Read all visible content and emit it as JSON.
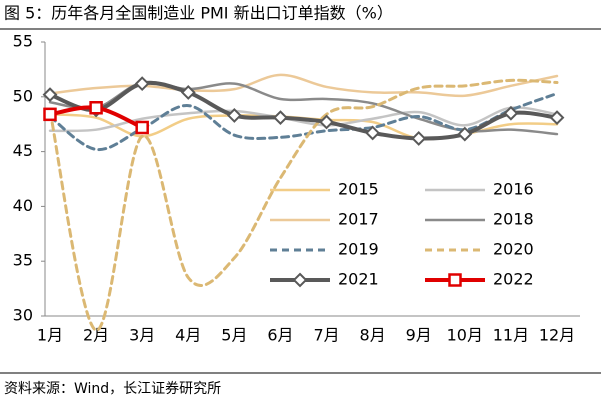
{
  "chart_data": {
    "type": "line",
    "title": "图 5：历年各月全国制造业 PMI 新出口订单指数（%）",
    "source": "资料来源：Wind，长江证券研究所",
    "categories": [
      "1月",
      "2月",
      "3月",
      "4月",
      "5月",
      "6月",
      "7月",
      "8月",
      "9月",
      "10月",
      "11月",
      "12月"
    ],
    "ylim": [
      30,
      55
    ],
    "yticks": [
      30,
      35,
      40,
      45,
      50,
      55
    ],
    "series": [
      {
        "name": "2015",
        "color": "#f2cd87",
        "line_width": 2.5,
        "dash": false,
        "marker": "none",
        "values": [
          48.4,
          48.1,
          46.4,
          48.0,
          48.3,
          48.2,
          47.9,
          47.7,
          46.2,
          46.6,
          47.5,
          47.5
        ]
      },
      {
        "name": "2016",
        "color": "#c4c4c4",
        "line_width": 2.5,
        "dash": false,
        "marker": "none",
        "values": [
          46.9,
          47.0,
          48.0,
          48.5,
          48.7,
          48.1,
          47.4,
          48.0,
          48.6,
          47.4,
          49.0,
          48.4
        ]
      },
      {
        "name": "2017",
        "color": "#ecc998",
        "line_width": 2.5,
        "dash": false,
        "marker": "none",
        "values": [
          50.3,
          50.8,
          51.0,
          50.6,
          50.7,
          52.0,
          50.9,
          50.4,
          50.4,
          50.1,
          51.0,
          51.9
        ]
      },
      {
        "name": "2018",
        "color": "#8a8a8a",
        "line_width": 2.5,
        "dash": false,
        "marker": "none",
        "values": [
          49.5,
          49.0,
          51.3,
          50.7,
          51.2,
          49.8,
          49.8,
          49.4,
          48.0,
          46.9,
          47.0,
          46.6
        ]
      },
      {
        "name": "2019",
        "color": "#5f7f96",
        "line_width": 3,
        "dash": true,
        "marker": "none",
        "values": [
          48.2,
          45.2,
          47.1,
          49.2,
          46.5,
          46.3,
          46.9,
          47.2,
          48.2,
          47.0,
          48.8,
          50.3
        ]
      },
      {
        "name": "2020",
        "color": "#dbb873",
        "line_width": 3,
        "dash": true,
        "marker": "none",
        "values": [
          48.7,
          28.7,
          46.4,
          33.5,
          35.3,
          42.6,
          48.4,
          49.1,
          50.8,
          51.0,
          51.5,
          51.3
        ]
      },
      {
        "name": "2021",
        "color": "#595959",
        "line_width": 4,
        "dash": false,
        "marker": "diamond",
        "values": [
          50.2,
          48.8,
          51.2,
          50.4,
          48.3,
          48.1,
          47.7,
          46.7,
          46.2,
          46.6,
          48.5,
          48.1
        ]
      },
      {
        "name": "2022",
        "color": "#e00000",
        "line_width": 4,
        "dash": false,
        "marker": "square",
        "values": [
          48.4,
          49.0,
          47.2,
          null,
          null,
          null,
          null,
          null,
          null,
          null,
          null,
          null
        ]
      }
    ]
  }
}
